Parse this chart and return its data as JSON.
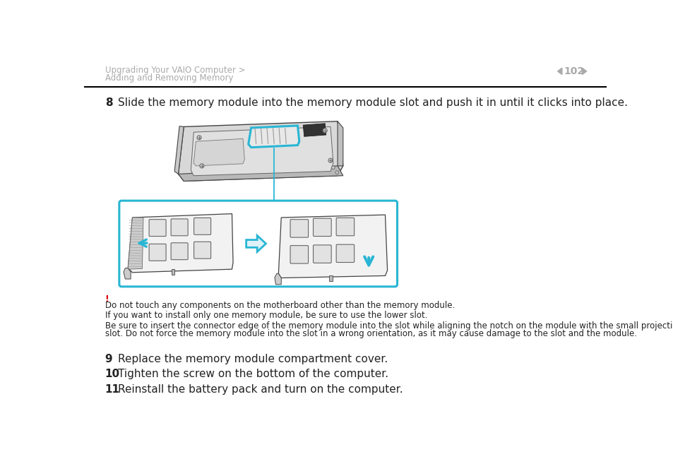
{
  "bg_color": "#ffffff",
  "header_text_line1": "Upgrading Your VAIO Computer >",
  "header_text_line2": "Adding and Removing Memory",
  "page_number": "102",
  "header_color": "#aaaaaa",
  "separator_color": "#000000",
  "step8_number": "8",
  "step8_text": "Slide the memory module into the memory module slot and push it in until it clicks into place.",
  "warning_symbol": "!",
  "warning_color": "#dd0000",
  "warning_text1": "Do not touch any components on the motherboard other than the memory module.",
  "warning_text2": "If you want to install only one memory module, be sure to use the lower slot.",
  "warning_text3": "Be sure to insert the connector edge of the memory module into the slot while aligning the notch on the module with the small projection in the open slot. Do not force the memory module into the slot in a wrong orientation, as it may cause damage to the slot and the module.",
  "step9_number": "9",
  "step9_text": "Replace the memory module compartment cover.",
  "step10_number": "10",
  "step10_text": "Tighten the screw on the bottom of the computer.",
  "step11_number": "11",
  "step11_text": "Reinstall the battery pack and turn on the computer.",
  "cyan_color": "#29b6d4",
  "body_font_size": 8.5,
  "step_font_size": 11,
  "header_font_size": 8.5,
  "text_color": "#222222"
}
